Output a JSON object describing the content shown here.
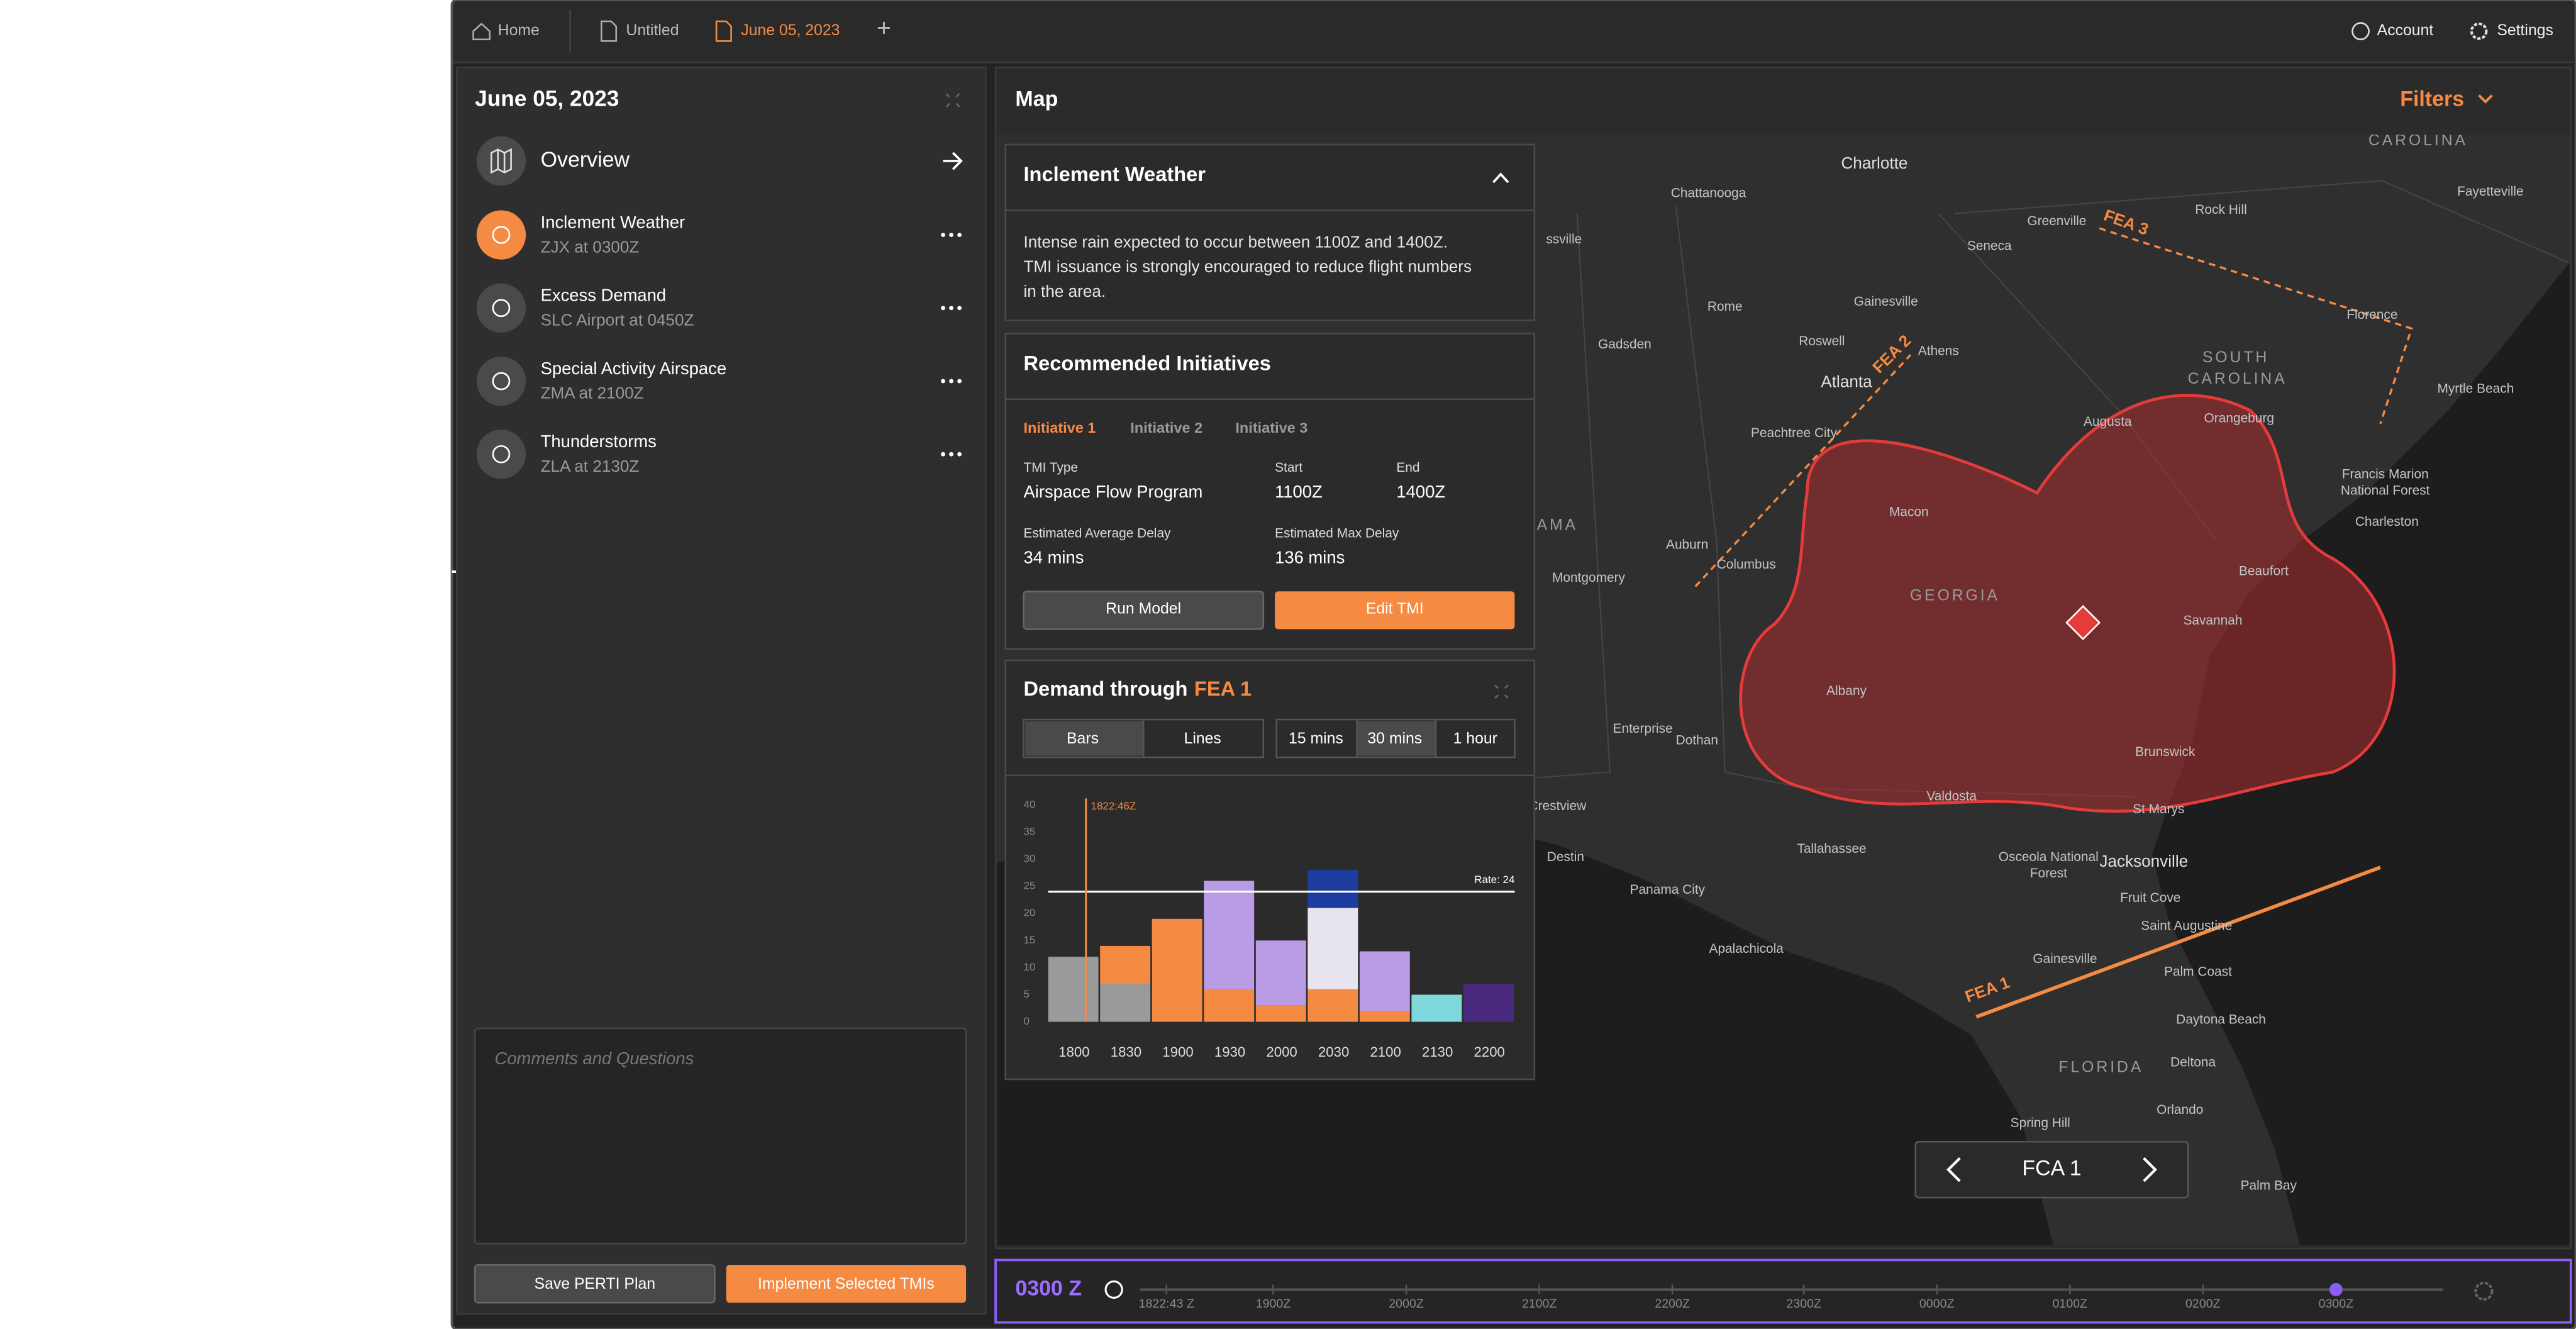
{
  "tabs": {
    "home": "Home",
    "untitled": "Untitled",
    "active": "June 05, 2023",
    "new": "+"
  },
  "account": "Account",
  "settings": "Settings",
  "plan": {
    "date": "June 05, 2023",
    "overview": "Overview",
    "events": [
      {
        "name": "Inclement Weather",
        "detail": "ZJX at 0300Z"
      },
      {
        "name": "Excess Demand",
        "detail": "SLC Airport at 0450Z"
      },
      {
        "name": "Special Activity Airspace",
        "detail": "ZMA at 2100Z"
      },
      {
        "name": "Thunderstorms",
        "detail": "ZLA at 2130Z"
      }
    ],
    "comments_placeholder": "Comments and Questions",
    "save": "Save PERTI Plan",
    "implement": "Implement Selected TMIs"
  },
  "map": {
    "title": "Map",
    "filters": "Filters",
    "fca": "FCA 1",
    "fea": [
      "FEA 1",
      "FEA 2",
      "FEA 3"
    ],
    "labels": [
      "Charlotte",
      "Chattanooga",
      "Fayetteville",
      "Rock Hill",
      "Greenville",
      "Seneca",
      "Gainesville",
      "Rome",
      "Florence",
      "Roswell",
      "Athens",
      "Gadsden",
      "Atlanta",
      "Myrtle Beach",
      "Peachtree City",
      "Augusta",
      "Orangeburg",
      "Macon",
      "Charleston",
      "Auburn",
      "Columbus",
      "Montgomery",
      "Beaufort",
      "Savannah",
      "Albany",
      "Enterprise",
      "Dothan",
      "Brunswick",
      "Valdosta",
      "St Marys",
      "Crestview",
      "Destin",
      "Tallahassee",
      "Jacksonville",
      "Panama City",
      "Fruit Cove",
      "Saint Augustine",
      "Apalachicola",
      "Gainesville",
      "Palm Coast",
      "Daytona Beach",
      "Deltona",
      "Orlando",
      "Spring Hill",
      "Palm Bay",
      "Osceola National",
      "Forest",
      "Francis Marion",
      "National Forest",
      "ssville"
    ],
    "regions": [
      "CAROLINA",
      "SOUTH",
      "CAROLINA",
      "GEORGIA",
      "FLORIDA",
      "AMA"
    ]
  },
  "weather": {
    "title": "Inclement Weather",
    "lines": [
      "Intense rain expected to occur between 1100Z and 1400Z.",
      "TMI issuance is strongly encouraged to reduce flight numbers",
      "in the area."
    ]
  },
  "initiatives": {
    "title": "Recommended Initiatives",
    "tabs": [
      "Initiative 1",
      "Initiative 2",
      "Initiative 3"
    ],
    "fields": [
      {
        "label": "TMI Type",
        "value": "Airspace Flow Program"
      },
      {
        "label": "Start",
        "value": "1100Z"
      },
      {
        "label": "End",
        "value": "1400Z"
      },
      {
        "label": "Estimated Average Delay",
        "value": "34 mins"
      },
      {
        "label": "Estimated Max Delay",
        "value": "136 mins"
      }
    ],
    "run": "Run Model",
    "edit": "Edit TMI"
  },
  "demand_controls": {
    "views": [
      "Bars",
      "Lines"
    ],
    "intervals": [
      "15 mins",
      "30 mins",
      "1 hour"
    ]
  },
  "chart_data": {
    "type": "bar",
    "stacked": true,
    "title": "Demand through",
    "title_highlight": "FEA 1",
    "categories": [
      "1800",
      "1830",
      "1900",
      "1930",
      "2000",
      "2030",
      "2100",
      "2130",
      "2200"
    ],
    "series": [
      {
        "color": "#9a9a9a",
        "values": [
          12,
          7,
          null,
          null,
          null,
          null,
          null,
          null,
          null
        ]
      },
      {
        "color": "#f58a42",
        "values": [
          null,
          7,
          19,
          6,
          3,
          6,
          2,
          null,
          null
        ]
      },
      {
        "color": "#b99be6",
        "values": [
          null,
          null,
          null,
          20,
          12,
          null,
          11,
          null,
          null
        ]
      },
      {
        "color": "#e7e4ee",
        "values": [
          null,
          null,
          null,
          null,
          null,
          15,
          null,
          null,
          null
        ]
      },
      {
        "color": "#1c3d9e",
        "values": [
          null,
          null,
          null,
          null,
          null,
          7,
          null,
          null,
          null
        ]
      },
      {
        "color": "#7fd9dc",
        "values": [
          null,
          null,
          null,
          null,
          null,
          null,
          null,
          5,
          null
        ]
      },
      {
        "color": "#4a2a7e",
        "values": [
          null,
          null,
          null,
          null,
          null,
          null,
          null,
          null,
          7
        ]
      }
    ],
    "ylim": [
      0,
      40
    ],
    "yticks": [
      0,
      5,
      10,
      15,
      20,
      25,
      30,
      35,
      40
    ],
    "rate": {
      "value": 24,
      "label": "Rate: 24"
    },
    "marker_label": "1822:46Z"
  },
  "timeline": {
    "current": "0300 Z",
    "ticks": [
      "1822:43 Z",
      "1900Z",
      "2000Z",
      "2100Z",
      "2200Z",
      "2300Z",
      "0000Z",
      "0100Z",
      "0200Z",
      "0300Z"
    ]
  }
}
